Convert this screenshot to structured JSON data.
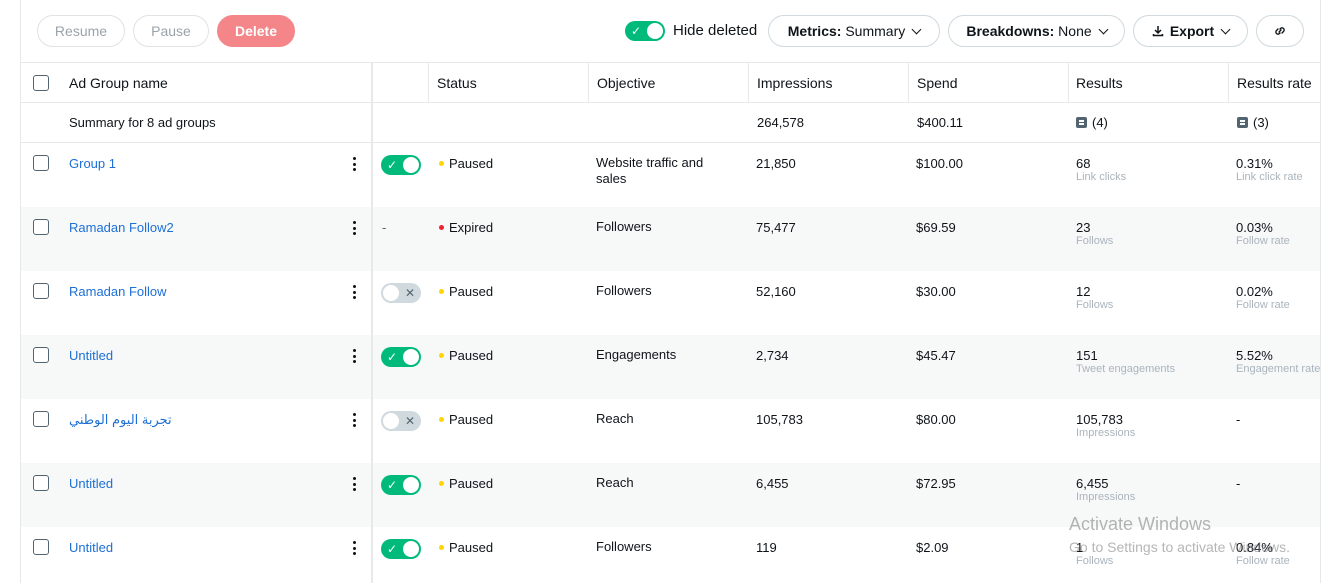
{
  "toolbar": {
    "resume_label": "Resume",
    "pause_label": "Pause",
    "delete_label": "Delete",
    "hide_deleted_label": "Hide deleted",
    "hide_deleted_on": true,
    "metrics_key": "Metrics:",
    "metrics_value": "Summary",
    "breakdowns_key": "Breakdowns:",
    "breakdowns_value": "None",
    "export_label": "Export",
    "link_icon": "link-icon"
  },
  "table": {
    "headers": {
      "name": "Ad Group name",
      "status": "Status",
      "objective": "Objective",
      "impressions": "Impressions",
      "spend": "Spend",
      "results": "Results",
      "results_rate": "Results rate"
    },
    "summary": {
      "label": "Summary for 8 ad groups",
      "impressions": "264,578",
      "spend": "$400.11",
      "results": "(4)",
      "results_rate": "(3)"
    },
    "rows": [
      {
        "name": "Group 1",
        "toggle": "on",
        "status": "Paused",
        "objective": "Website traffic and sales",
        "impressions": "21,850",
        "spend": "$100.00",
        "results": "68",
        "results_sub": "Link clicks",
        "rate": "0.31%",
        "rate_sub": "Link click rate"
      },
      {
        "name": "Ramadan Follow2",
        "toggle": "none",
        "toggle_text": "-",
        "status": "Expired",
        "objective": "Followers",
        "impressions": "75,477",
        "spend": "$69.59",
        "results": "23",
        "results_sub": "Follows",
        "rate": "0.03%",
        "rate_sub": "Follow rate"
      },
      {
        "name": "Ramadan Follow",
        "toggle": "off",
        "status": "Paused",
        "objective": "Followers",
        "impressions": "52,160",
        "spend": "$30.00",
        "results": "12",
        "results_sub": "Follows",
        "rate": "0.02%",
        "rate_sub": "Follow rate"
      },
      {
        "name": "Untitled",
        "toggle": "on",
        "status": "Paused",
        "objective": "Engagements",
        "impressions": "2,734",
        "spend": "$45.47",
        "results": "151",
        "results_sub": "Tweet engagements",
        "rate": "5.52%",
        "rate_sub": "Engagement rate"
      },
      {
        "name": "تجربة اليوم الوطني",
        "toggle": "off",
        "status": "Paused",
        "objective": "Reach",
        "impressions": "105,783",
        "spend": "$80.00",
        "results": "105,783",
        "results_sub": "Impressions",
        "rate": "-",
        "rate_sub": ""
      },
      {
        "name": "Untitled",
        "toggle": "on",
        "status": "Paused",
        "objective": "Reach",
        "impressions": "6,455",
        "spend": "$72.95",
        "results": "6,455",
        "results_sub": "Impressions",
        "rate": "-",
        "rate_sub": ""
      },
      {
        "name": "Untitled",
        "toggle": "on",
        "status": "Paused",
        "objective": "Followers",
        "impressions": "119",
        "spend": "$2.09",
        "results": "1",
        "results_sub": "Follows",
        "rate": "0.84%",
        "rate_sub": "Follow rate"
      }
    ]
  },
  "colors": {
    "accent_green": "#00ba7c",
    "link_blue": "#1d6fd6",
    "paused_yellow": "#ffd400",
    "expired_red": "#f4212e",
    "delete_pink": "#f4868a"
  },
  "watermark": {
    "title": "Activate Windows",
    "subtitle": "Go to Settings to activate Windows."
  }
}
